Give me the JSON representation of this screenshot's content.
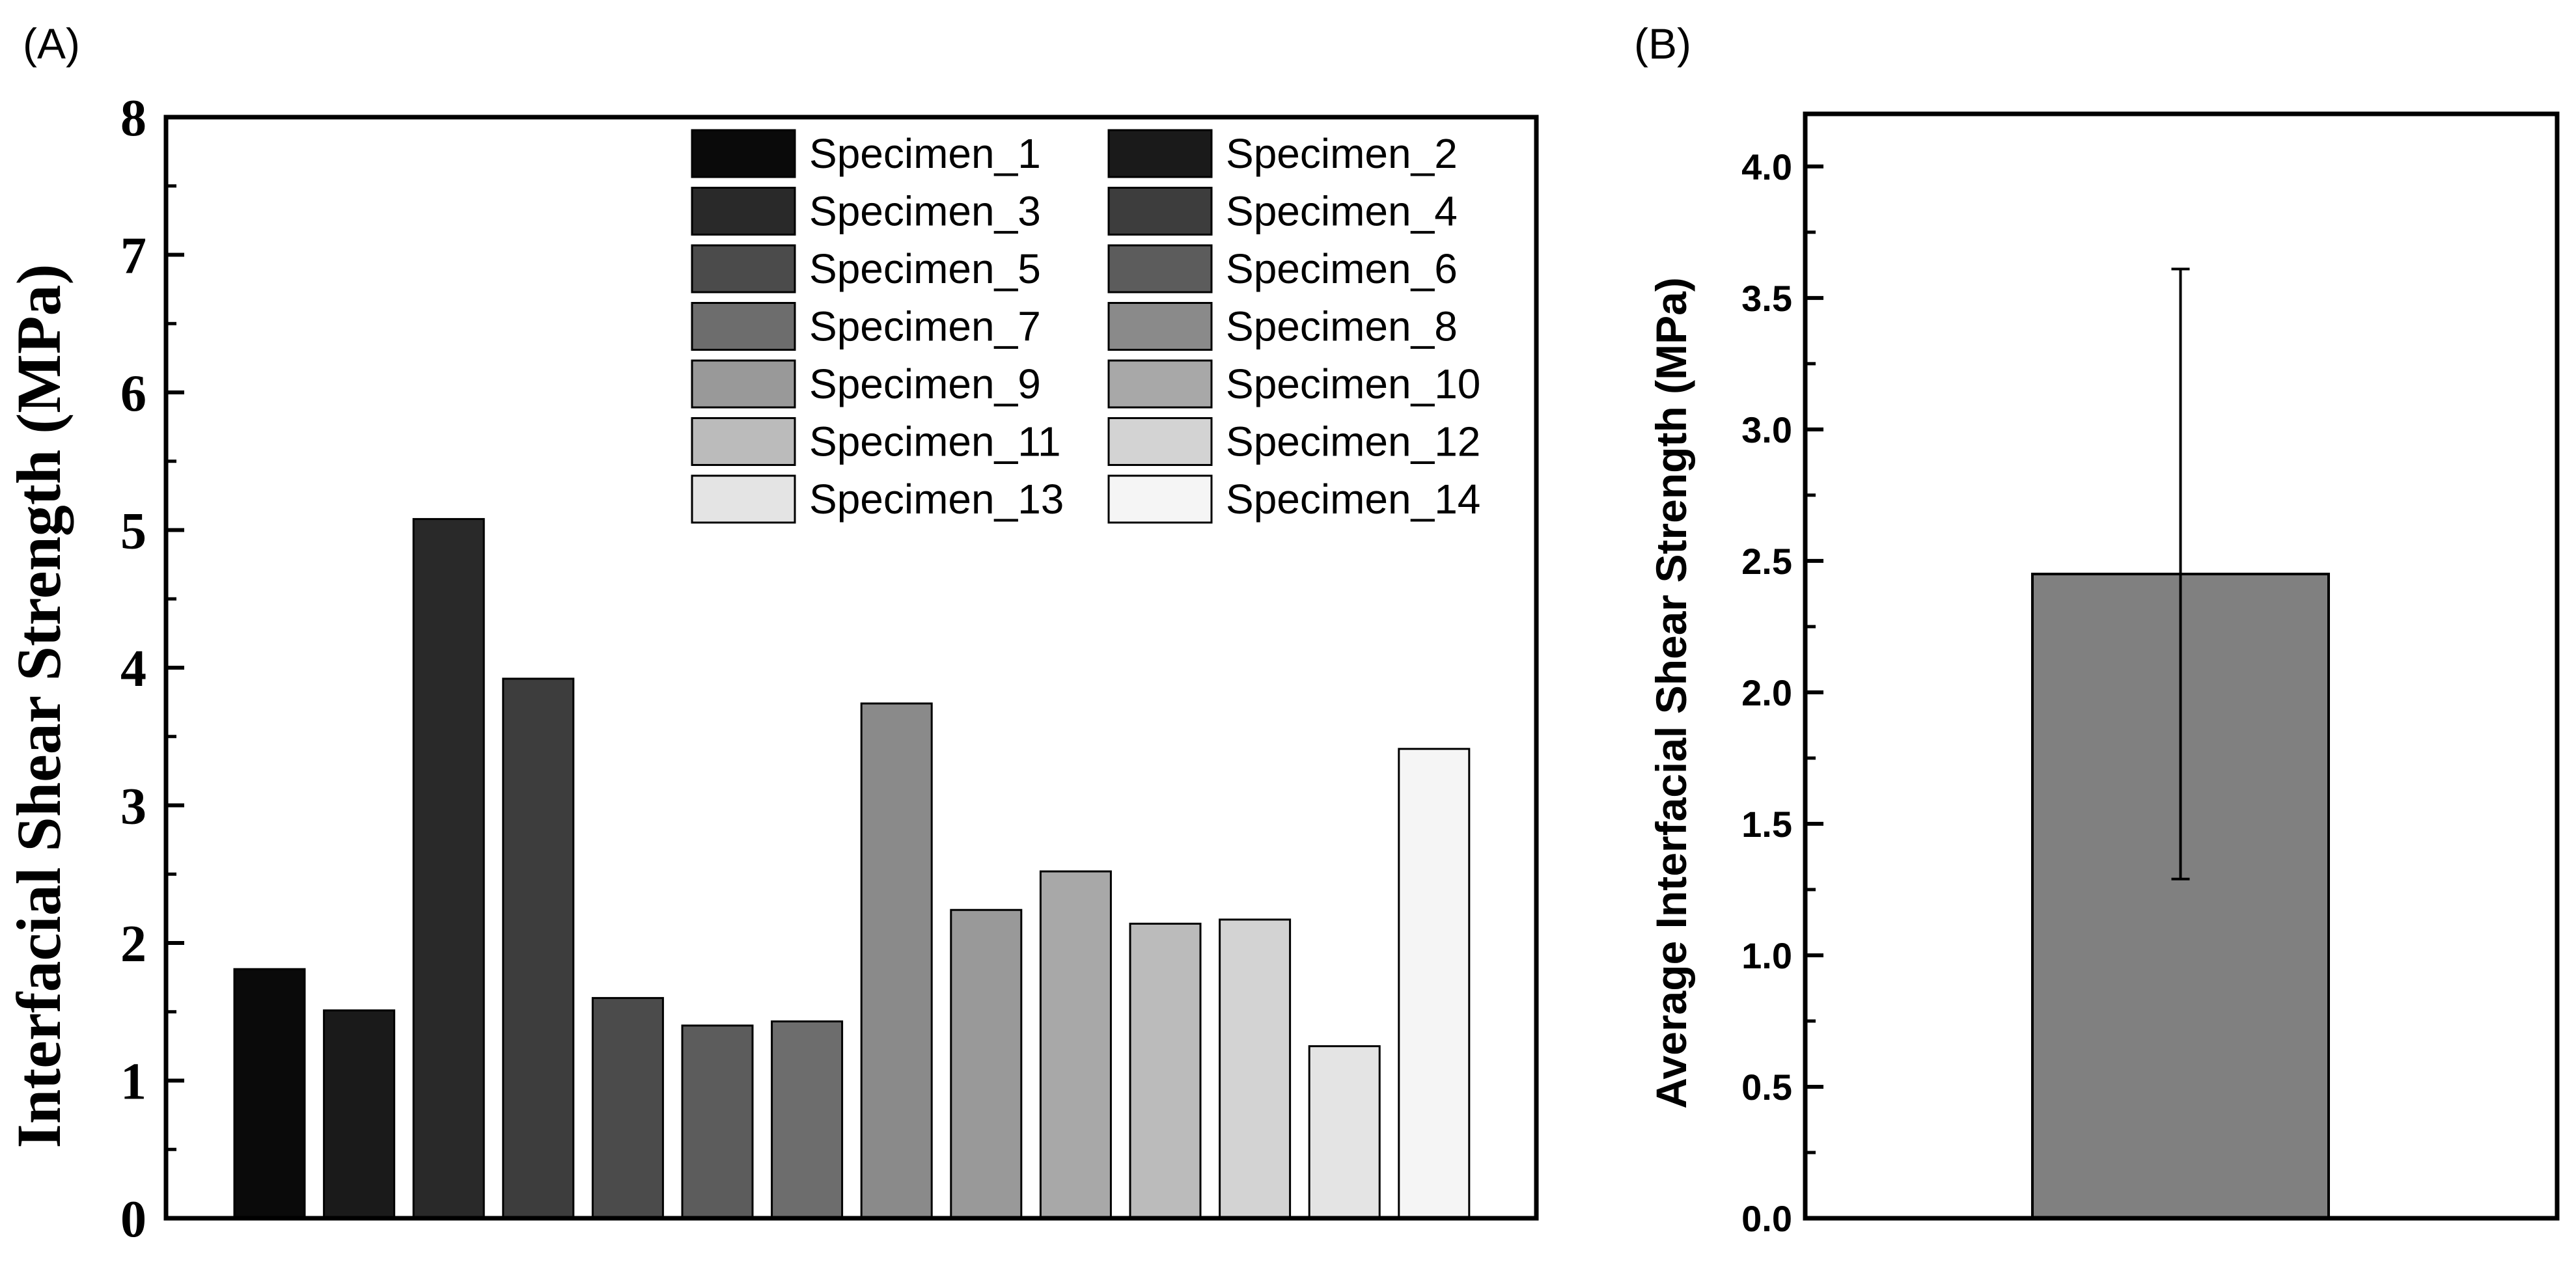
{
  "chart_data": [
    {
      "panel_label": "(A)",
      "type": "bar",
      "ylabel": "Interfacial Shear Strength (MPa)",
      "xlabel": "",
      "ylim": [
        0,
        8
      ],
      "yticks": [
        "0",
        "1",
        "2",
        "3",
        "4",
        "5",
        "6",
        "7",
        "8"
      ],
      "legend_position": "top-right",
      "series": [
        {
          "name": "Specimen_1",
          "value": 1.81,
          "color": "#0a0a0a"
        },
        {
          "name": "Specimen_2",
          "value": 1.51,
          "color": "#1a1a1a"
        },
        {
          "name": "Specimen_3",
          "value": 5.08,
          "color": "#292929"
        },
        {
          "name": "Specimen_4",
          "value": 3.92,
          "color": "#3d3d3d"
        },
        {
          "name": "Specimen_5",
          "value": 1.6,
          "color": "#4b4b4b"
        },
        {
          "name": "Specimen_6",
          "value": 1.4,
          "color": "#5c5c5c"
        },
        {
          "name": "Specimen_7",
          "value": 1.43,
          "color": "#6d6d6d"
        },
        {
          "name": "Specimen_8",
          "value": 3.74,
          "color": "#8a8a8a"
        },
        {
          "name": "Specimen_9",
          "value": 2.24,
          "color": "#999999"
        },
        {
          "name": "Specimen_10",
          "value": 2.52,
          "color": "#a8a8a8"
        },
        {
          "name": "Specimen_11",
          "value": 2.14,
          "color": "#bbbbbb"
        },
        {
          "name": "Specimen_12",
          "value": 2.17,
          "color": "#d3d3d3"
        },
        {
          "name": "Specimen_13",
          "value": 1.25,
          "color": "#e4e4e4"
        },
        {
          "name": "Specimen_14",
          "value": 3.41,
          "color": "#f5f5f5"
        }
      ]
    },
    {
      "panel_label": "(B)",
      "type": "bar",
      "ylabel": "Average Interfacial Shear Strength (MPa)",
      "xlabel": "",
      "ylim": [
        0,
        4.2
      ],
      "yticks": [
        "0.0",
        "0.5",
        "1.0",
        "1.5",
        "2.0",
        "2.5",
        "3.0",
        "3.5",
        "4.0"
      ],
      "value": 2.45,
      "error_low": 1.29,
      "error_high": 3.61,
      "color": "#808080"
    }
  ]
}
